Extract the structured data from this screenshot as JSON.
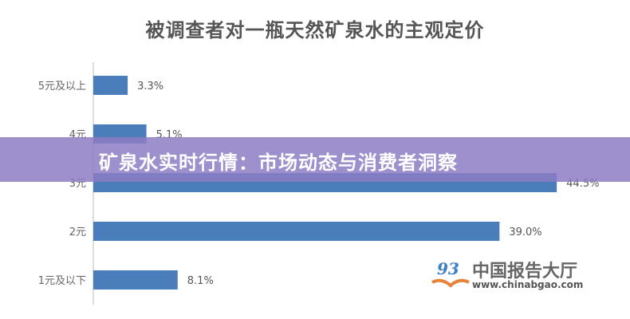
{
  "chart_data": {
    "type": "bar",
    "orientation": "horizontal",
    "title": "被调查者对一瓶天然矿泉水的主观定价",
    "categories": [
      "5元及以上",
      "4元",
      "3元",
      "2元",
      "1元及以下"
    ],
    "values": [
      3.3,
      5.1,
      44.5,
      39.0,
      8.1
    ],
    "data_labels": [
      "3.3%",
      "5.1%",
      "44.5%",
      "39.0%",
      "8.1%"
    ],
    "xlabel": "",
    "ylabel": "",
    "grid": false,
    "bar_color": "#4a7ebb"
  },
  "banner": {
    "text": "矿泉水实时行情：市场动态与消费者洞察",
    "color": "#8c7cc4"
  },
  "watermark": {
    "name": "中国报告大厅",
    "url": "www.chinabgao.com"
  }
}
